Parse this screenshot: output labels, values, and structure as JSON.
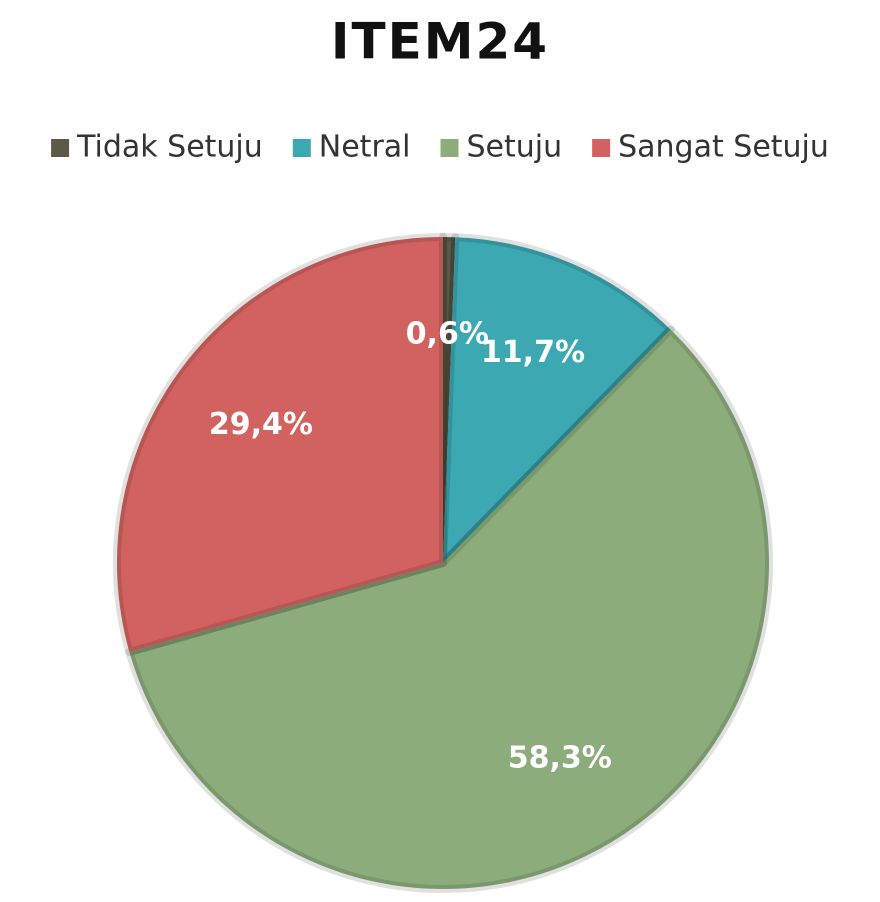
{
  "chart_data": {
    "type": "pie",
    "title": "ITEM24",
    "categories": [
      "Tidak Setuju",
      "Netral",
      "Setuju",
      "Sangat Setuju"
    ],
    "values": [
      0.6,
      11.7,
      58.3,
      29.4
    ],
    "value_labels": [
      "0,6%",
      "11,7%",
      "58,3%",
      "29,4%"
    ],
    "colors": [
      "#5b5a47",
      "#3ba8b2",
      "#8dac7b",
      "#d1625f"
    ],
    "legend": "top"
  }
}
